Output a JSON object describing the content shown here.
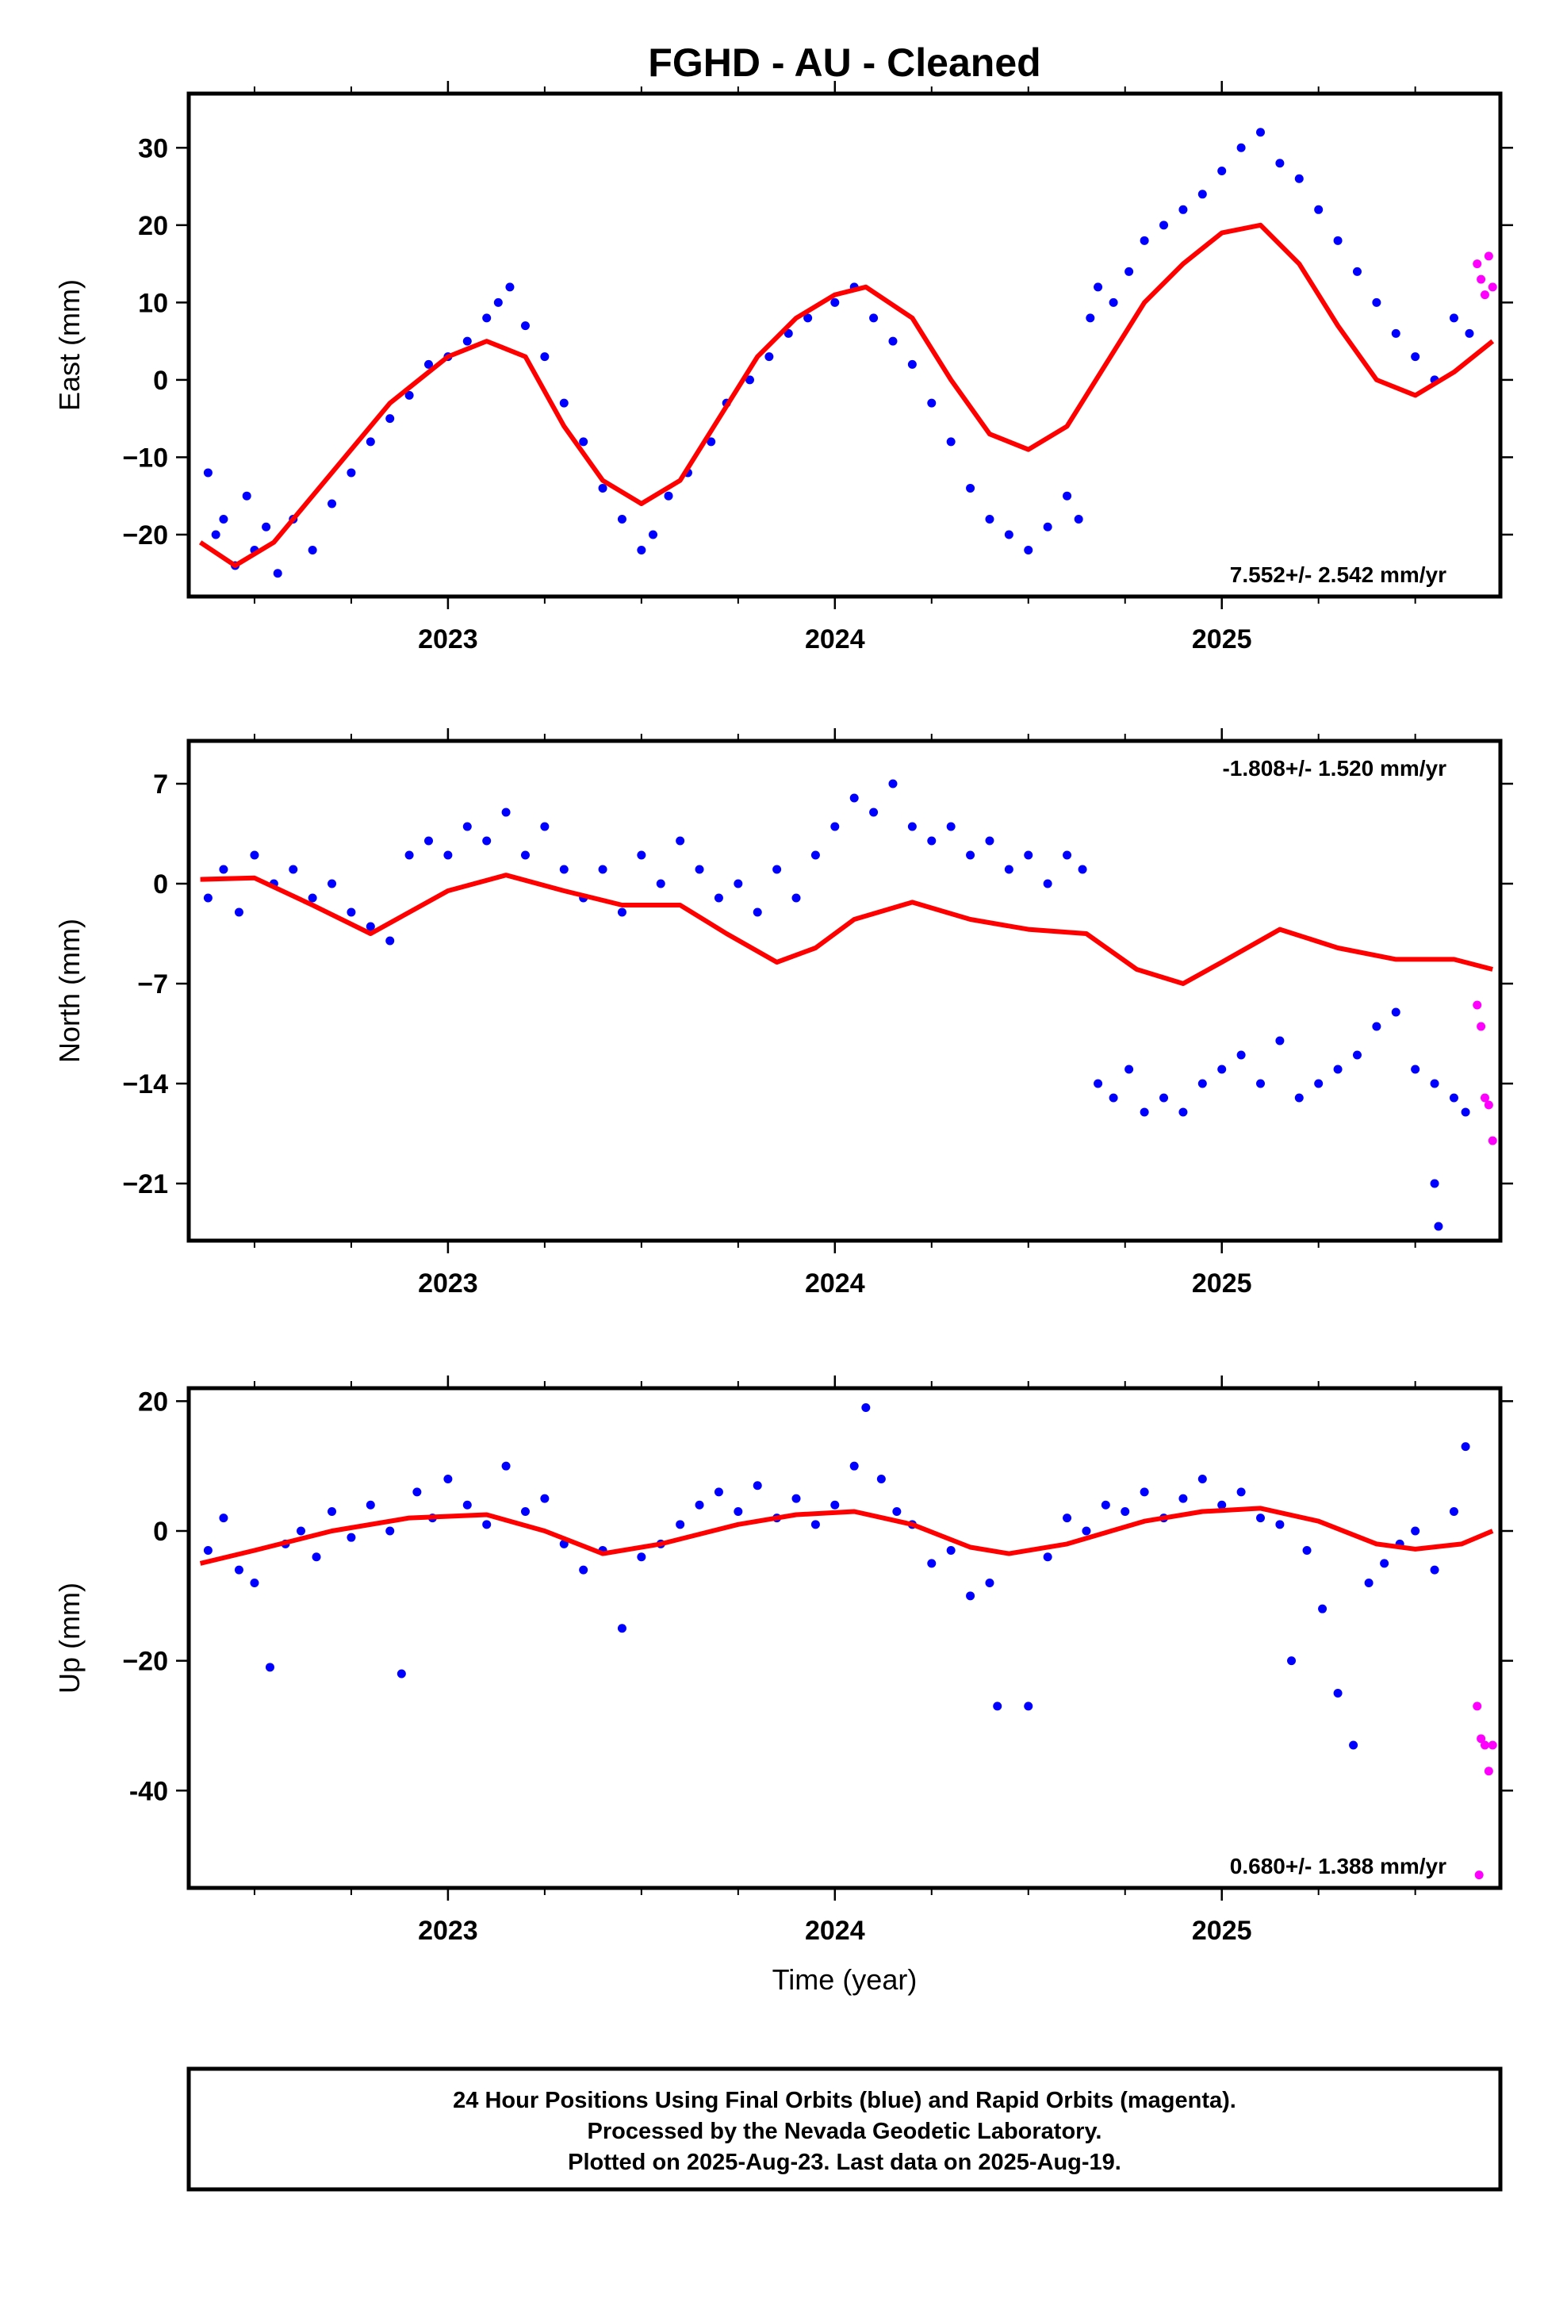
{
  "title": "FGHD  - AU - Cleaned",
  "footer": {
    "line1": "24 Hour Positions Using Final Orbits (blue) and Rapid Orbits (magenta).",
    "line2": "Processed by the Nevada Geodetic Laboratory.",
    "line3": "Plotted on 2025-Aug-23. Last data on 2025-Aug-19."
  },
  "colors": {
    "final": "#0000ff",
    "rapid": "#ff00ff",
    "fit": "#ff0000",
    "frame": "#000000"
  },
  "chart_data": [
    {
      "type": "scatter",
      "name": "east",
      "ylabel": "East (mm)",
      "xlabel": "",
      "xlim": [
        2022.33,
        2025.72
      ],
      "ylim": [
        -28,
        37
      ],
      "xticks": [
        2023,
        2024,
        2025
      ],
      "xtick_labels": [
        "2023",
        "2024",
        "2025"
      ],
      "yticks": [
        -20,
        -10,
        0,
        10,
        20,
        30
      ],
      "ytick_labels": [
        "−20",
        "−10",
        "0",
        "10",
        "20",
        "30"
      ],
      "rate_label": "7.552+/- 2.542 mm/yr",
      "rate_position": "bottom-right",
      "final_points": [
        [
          2022.38,
          -12
        ],
        [
          2022.4,
          -20
        ],
        [
          2022.42,
          -18
        ],
        [
          2022.45,
          -24
        ],
        [
          2022.48,
          -15
        ],
        [
          2022.5,
          -22
        ],
        [
          2022.53,
          -19
        ],
        [
          2022.56,
          -25
        ],
        [
          2022.6,
          -18
        ],
        [
          2022.65,
          -22
        ],
        [
          2022.7,
          -16
        ],
        [
          2022.75,
          -12
        ],
        [
          2022.8,
          -8
        ],
        [
          2022.85,
          -5
        ],
        [
          2022.9,
          -2
        ],
        [
          2022.95,
          2
        ],
        [
          2023.0,
          3
        ],
        [
          2023.05,
          5
        ],
        [
          2023.1,
          8
        ],
        [
          2023.13,
          10
        ],
        [
          2023.16,
          12
        ],
        [
          2023.2,
          7
        ],
        [
          2023.25,
          3
        ],
        [
          2023.3,
          -3
        ],
        [
          2023.35,
          -8
        ],
        [
          2023.4,
          -14
        ],
        [
          2023.45,
          -18
        ],
        [
          2023.5,
          -22
        ],
        [
          2023.53,
          -20
        ],
        [
          2023.57,
          -15
        ],
        [
          2023.62,
          -12
        ],
        [
          2023.68,
          -8
        ],
        [
          2023.72,
          -3
        ],
        [
          2023.78,
          0
        ],
        [
          2023.83,
          3
        ],
        [
          2023.88,
          6
        ],
        [
          2023.93,
          8
        ],
        [
          2024.0,
          10
        ],
        [
          2024.05,
          12
        ],
        [
          2024.1,
          8
        ],
        [
          2024.15,
          5
        ],
        [
          2024.2,
          2
        ],
        [
          2024.25,
          -3
        ],
        [
          2024.3,
          -8
        ],
        [
          2024.35,
          -14
        ],
        [
          2024.4,
          -18
        ],
        [
          2024.45,
          -20
        ],
        [
          2024.5,
          -22
        ],
        [
          2024.55,
          -19
        ],
        [
          2024.6,
          -15
        ],
        [
          2024.63,
          -18
        ],
        [
          2024.66,
          8
        ],
        [
          2024.68,
          12
        ],
        [
          2024.72,
          10
        ],
        [
          2024.76,
          14
        ],
        [
          2024.8,
          18
        ],
        [
          2024.85,
          20
        ],
        [
          2024.9,
          22
        ],
        [
          2024.95,
          24
        ],
        [
          2025.0,
          27
        ],
        [
          2025.05,
          30
        ],
        [
          2025.1,
          32
        ],
        [
          2025.15,
          28
        ],
        [
          2025.2,
          26
        ],
        [
          2025.25,
          22
        ],
        [
          2025.3,
          18
        ],
        [
          2025.35,
          14
        ],
        [
          2025.4,
          10
        ],
        [
          2025.45,
          6
        ],
        [
          2025.5,
          3
        ],
        [
          2025.55,
          0
        ],
        [
          2025.6,
          8
        ],
        [
          2025.64,
          6
        ]
      ],
      "rapid_points": [
        [
          2025.66,
          15
        ],
        [
          2025.67,
          13
        ],
        [
          2025.68,
          11
        ],
        [
          2025.69,
          16
        ],
        [
          2025.7,
          12
        ]
      ],
      "fit": [
        [
          2022.36,
          -21
        ],
        [
          2022.45,
          -24
        ],
        [
          2022.55,
          -21
        ],
        [
          2022.7,
          -12
        ],
        [
          2022.85,
          -3
        ],
        [
          2023.0,
          3
        ],
        [
          2023.1,
          5
        ],
        [
          2023.2,
          3
        ],
        [
          2023.3,
          -6
        ],
        [
          2023.4,
          -13
        ],
        [
          2023.5,
          -16
        ],
        [
          2023.6,
          -13
        ],
        [
          2023.7,
          -5
        ],
        [
          2023.8,
          3
        ],
        [
          2023.9,
          8
        ],
        [
          2024.0,
          11
        ],
        [
          2024.08,
          12
        ],
        [
          2024.2,
          8
        ],
        [
          2024.3,
          0
        ],
        [
          2024.4,
          -7
        ],
        [
          2024.5,
          -9
        ],
        [
          2024.6,
          -6
        ],
        [
          2024.7,
          2
        ],
        [
          2024.8,
          10
        ],
        [
          2024.9,
          15
        ],
        [
          2025.0,
          19
        ],
        [
          2025.1,
          20
        ],
        [
          2025.2,
          15
        ],
        [
          2025.3,
          7
        ],
        [
          2025.4,
          0
        ],
        [
          2025.5,
          -2
        ],
        [
          2025.6,
          1
        ],
        [
          2025.7,
          5
        ]
      ]
    },
    {
      "type": "scatter",
      "name": "north",
      "ylabel": "North (mm)",
      "xlabel": "",
      "xlim": [
        2022.33,
        2025.72
      ],
      "ylim": [
        -25,
        10
      ],
      "xticks": [
        2023,
        2024,
        2025
      ],
      "xtick_labels": [
        "2023",
        "2024",
        "2025"
      ],
      "yticks": [
        -21,
        -14,
        -7,
        0,
        7
      ],
      "ytick_labels": [
        "−21",
        "−14",
        "−7",
        "0",
        "7"
      ],
      "rate_label": "-1.808+/- 1.520 mm/yr",
      "rate_position": "top-right",
      "final_points": [
        [
          2022.38,
          -1
        ],
        [
          2022.42,
          1
        ],
        [
          2022.46,
          -2
        ],
        [
          2022.5,
          2
        ],
        [
          2022.55,
          0
        ],
        [
          2022.6,
          1
        ],
        [
          2022.65,
          -1
        ],
        [
          2022.7,
          0
        ],
        [
          2022.75,
          -2
        ],
        [
          2022.8,
          -3
        ],
        [
          2022.85,
          -4
        ],
        [
          2022.9,
          2
        ],
        [
          2022.95,
          3
        ],
        [
          2023.0,
          2
        ],
        [
          2023.05,
          4
        ],
        [
          2023.1,
          3
        ],
        [
          2023.15,
          5
        ],
        [
          2023.2,
          2
        ],
        [
          2023.25,
          4
        ],
        [
          2023.3,
          1
        ],
        [
          2023.35,
          -1
        ],
        [
          2023.4,
          1
        ],
        [
          2023.45,
          -2
        ],
        [
          2023.5,
          2
        ],
        [
          2023.55,
          0
        ],
        [
          2023.6,
          3
        ],
        [
          2023.65,
          1
        ],
        [
          2023.7,
          -1
        ],
        [
          2023.75,
          0
        ],
        [
          2023.8,
          -2
        ],
        [
          2023.85,
          1
        ],
        [
          2023.9,
          -1
        ],
        [
          2023.95,
          2
        ],
        [
          2024.0,
          4
        ],
        [
          2024.05,
          6
        ],
        [
          2024.1,
          5
        ],
        [
          2024.15,
          7
        ],
        [
          2024.2,
          4
        ],
        [
          2024.25,
          3
        ],
        [
          2024.3,
          4
        ],
        [
          2024.35,
          2
        ],
        [
          2024.4,
          3
        ],
        [
          2024.45,
          1
        ],
        [
          2024.5,
          2
        ],
        [
          2024.55,
          0
        ],
        [
          2024.6,
          2
        ],
        [
          2024.64,
          1
        ],
        [
          2024.68,
          -14
        ],
        [
          2024.72,
          -15
        ],
        [
          2024.76,
          -13
        ],
        [
          2024.8,
          -16
        ],
        [
          2024.85,
          -15
        ],
        [
          2024.9,
          -16
        ],
        [
          2024.95,
          -14
        ],
        [
          2025.0,
          -13
        ],
        [
          2025.05,
          -12
        ],
        [
          2025.1,
          -14
        ],
        [
          2025.15,
          -11
        ],
        [
          2025.2,
          -15
        ],
        [
          2025.25,
          -14
        ],
        [
          2025.3,
          -13
        ],
        [
          2025.35,
          -12
        ],
        [
          2025.4,
          -10
        ],
        [
          2025.45,
          -9
        ],
        [
          2025.5,
          -13
        ],
        [
          2025.55,
          -14
        ],
        [
          2025.6,
          -15
        ],
        [
          2025.63,
          -16
        ],
        [
          2025.55,
          -21
        ],
        [
          2025.56,
          -24
        ]
      ],
      "rapid_points": [
        [
          2025.66,
          -8.5
        ],
        [
          2025.67,
          -10
        ],
        [
          2025.68,
          -15
        ],
        [
          2025.69,
          -15.5
        ],
        [
          2025.7,
          -18
        ]
      ],
      "fit": [
        [
          2022.36,
          0.3
        ],
        [
          2022.5,
          0.4
        ],
        [
          2022.65,
          -1.5
        ],
        [
          2022.8,
          -3.5
        ],
        [
          2022.9,
          -2
        ],
        [
          2023.0,
          -0.5
        ],
        [
          2023.15,
          0.6
        ],
        [
          2023.3,
          -0.5
        ],
        [
          2023.45,
          -1.5
        ],
        [
          2023.6,
          -1.5
        ],
        [
          2023.72,
          -3.5
        ],
        [
          2023.85,
          -5.5
        ],
        [
          2023.95,
          -4.5
        ],
        [
          2024.05,
          -2.5
        ],
        [
          2024.2,
          -1.3
        ],
        [
          2024.35,
          -2.5
        ],
        [
          2024.5,
          -3.2
        ],
        [
          2024.65,
          -3.5
        ],
        [
          2024.78,
          -6
        ],
        [
          2024.9,
          -7
        ],
        [
          2025.0,
          -5.5
        ],
        [
          2025.15,
          -3.2
        ],
        [
          2025.3,
          -4.5
        ],
        [
          2025.45,
          -5.3
        ],
        [
          2025.6,
          -5.3
        ],
        [
          2025.7,
          -6
        ]
      ]
    },
    {
      "type": "scatter",
      "name": "up",
      "ylabel": "Up (mm)",
      "xlabel": "Time (year)",
      "xlim": [
        2022.33,
        2025.72
      ],
      "ylim": [
        -55,
        22
      ],
      "xticks": [
        2023,
        2024,
        2025
      ],
      "xtick_labels": [
        "2023",
        "2024",
        "2025"
      ],
      "yticks": [
        -40,
        -20,
        0,
        20
      ],
      "ytick_labels": [
        "-40",
        "−20",
        "0",
        "20"
      ],
      "rate_label": "0.680+/- 1.388 mm/yr",
      "rate_position": "bottom-right",
      "final_points": [
        [
          2022.38,
          -3
        ],
        [
          2022.42,
          2
        ],
        [
          2022.46,
          -6
        ],
        [
          2022.5,
          -8
        ],
        [
          2022.54,
          -21
        ],
        [
          2022.58,
          -2
        ],
        [
          2022.62,
          0
        ],
        [
          2022.66,
          -4
        ],
        [
          2022.7,
          3
        ],
        [
          2022.75,
          -1
        ],
        [
          2022.8,
          4
        ],
        [
          2022.85,
          0
        ],
        [
          2022.88,
          -22
        ],
        [
          2022.92,
          6
        ],
        [
          2022.96,
          2
        ],
        [
          2023.0,
          8
        ],
        [
          2023.05,
          4
        ],
        [
          2023.1,
          1
        ],
        [
          2023.15,
          10
        ],
        [
          2023.2,
          3
        ],
        [
          2023.25,
          5
        ],
        [
          2023.3,
          -2
        ],
        [
          2023.35,
          -6
        ],
        [
          2023.4,
          -3
        ],
        [
          2023.45,
          -15
        ],
        [
          2023.5,
          -4
        ],
        [
          2023.55,
          -2
        ],
        [
          2023.6,
          1
        ],
        [
          2023.65,
          4
        ],
        [
          2023.7,
          6
        ],
        [
          2023.75,
          3
        ],
        [
          2023.8,
          7
        ],
        [
          2023.85,
          2
        ],
        [
          2023.9,
          5
        ],
        [
          2023.95,
          1
        ],
        [
          2024.0,
          4
        ],
        [
          2024.05,
          10
        ],
        [
          2024.08,
          19
        ],
        [
          2024.12,
          8
        ],
        [
          2024.16,
          3
        ],
        [
          2024.2,
          1
        ],
        [
          2024.25,
          -5
        ],
        [
          2024.3,
          -3
        ],
        [
          2024.35,
          -10
        ],
        [
          2024.4,
          -8
        ],
        [
          2024.42,
          -27
        ],
        [
          2024.5,
          -27
        ],
        [
          2024.55,
          -4
        ],
        [
          2024.6,
          2
        ],
        [
          2024.65,
          0
        ],
        [
          2024.7,
          4
        ],
        [
          2024.75,
          3
        ],
        [
          2024.8,
          6
        ],
        [
          2024.85,
          2
        ],
        [
          2024.9,
          5
        ],
        [
          2024.95,
          8
        ],
        [
          2025.0,
          4
        ],
        [
          2025.05,
          6
        ],
        [
          2025.1,
          2
        ],
        [
          2025.15,
          1
        ],
        [
          2025.18,
          -20
        ],
        [
          2025.22,
          -3
        ],
        [
          2025.26,
          -12
        ],
        [
          2025.3,
          -25
        ],
        [
          2025.34,
          -33
        ],
        [
          2025.38,
          -8
        ],
        [
          2025.42,
          -5
        ],
        [
          2025.46,
          -2
        ],
        [
          2025.5,
          0
        ],
        [
          2025.55,
          -6
        ],
        [
          2025.6,
          3
        ],
        [
          2025.63,
          13
        ]
      ],
      "rapid_points": [
        [
          2025.66,
          -27
        ],
        [
          2025.67,
          -32
        ],
        [
          2025.68,
          -33
        ],
        [
          2025.69,
          -37
        ],
        [
          2025.7,
          -33
        ],
        [
          2025.665,
          -53
        ]
      ],
      "fit": [
        [
          2022.36,
          -5
        ],
        [
          2022.5,
          -3
        ],
        [
          2022.7,
          0
        ],
        [
          2022.9,
          2
        ],
        [
          2023.1,
          2.5
        ],
        [
          2023.25,
          0
        ],
        [
          2023.4,
          -3.5
        ],
        [
          2023.55,
          -2
        ],
        [
          2023.75,
          1
        ],
        [
          2023.9,
          2.5
        ],
        [
          2024.05,
          3
        ],
        [
          2024.2,
          1
        ],
        [
          2024.35,
          -2.5
        ],
        [
          2024.45,
          -3.5
        ],
        [
          2024.6,
          -2
        ],
        [
          2024.8,
          1.5
        ],
        [
          2024.95,
          3
        ],
        [
          2025.1,
          3.5
        ],
        [
          2025.25,
          1.5
        ],
        [
          2025.4,
          -2
        ],
        [
          2025.5,
          -2.8
        ],
        [
          2025.62,
          -2
        ],
        [
          2025.7,
          0
        ]
      ]
    }
  ]
}
